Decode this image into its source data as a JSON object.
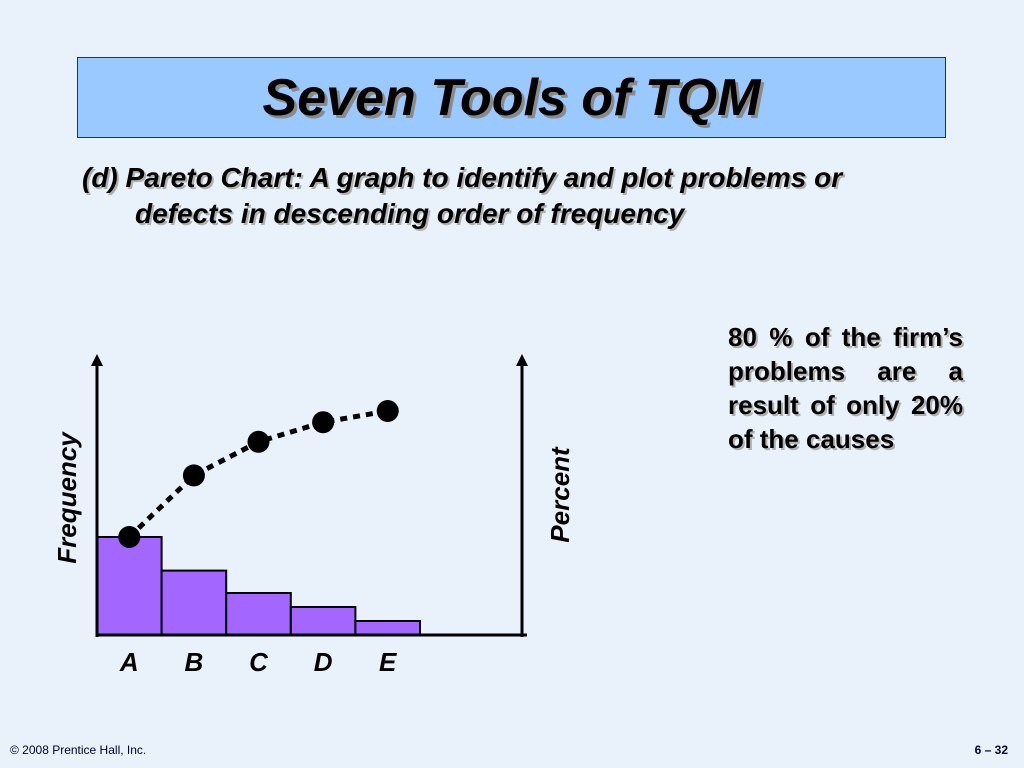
{
  "title": "Seven Tools of TQM",
  "description": "(d) Pareto Chart: A graph to identify and plot problems or defects in descending order of frequency",
  "note": "80 % of the firm’s problems are a result of only 20% of the causes",
  "footer": {
    "left": "© 2008 Prentice Hall, Inc.",
    "right": "6 – 32"
  },
  "chart_data": {
    "type": "pareto",
    "categories": [
      "A",
      "B",
      "C",
      "D",
      "E"
    ],
    "y_label": "Frequency",
    "y2_label": "Percent",
    "ylim": [
      0,
      100
    ],
    "y2lim": [
      0,
      100
    ],
    "series": [
      {
        "type": "bar",
        "color": "#a366ff",
        "values": [
          35,
          23,
          15,
          10,
          5
        ]
      },
      {
        "type": "line",
        "axis": "y2",
        "color": "#000000",
        "values": [
          35,
          57,
          69,
          76,
          80
        ]
      }
    ]
  }
}
